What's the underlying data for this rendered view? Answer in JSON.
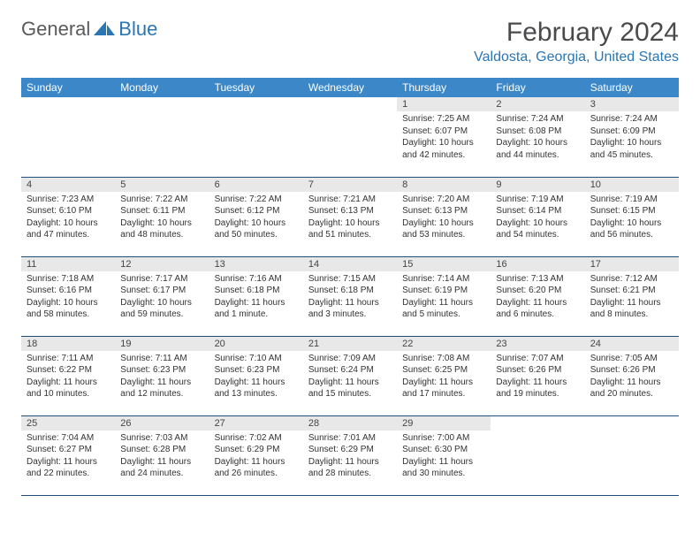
{
  "logo": {
    "word1": "General",
    "word2": "Blue"
  },
  "header": {
    "title": "February 2024",
    "location": "Valdosta, Georgia, United States"
  },
  "colors": {
    "header_bg": "#3b87c8",
    "header_text": "#ffffff",
    "daynum_bg": "#e8e8e8",
    "row_border": "#1f4e79",
    "logo_grey": "#5a5a5c",
    "logo_blue": "#2a76b4",
    "title_color": "#4a4a4c"
  },
  "day_headers": [
    "Sunday",
    "Monday",
    "Tuesday",
    "Wednesday",
    "Thursday",
    "Friday",
    "Saturday"
  ],
  "weeks": [
    [
      null,
      null,
      null,
      null,
      {
        "n": "1",
        "sunrise": "Sunrise: 7:25 AM",
        "sunset": "Sunset: 6:07 PM",
        "day1": "Daylight: 10 hours",
        "day2": "and 42 minutes."
      },
      {
        "n": "2",
        "sunrise": "Sunrise: 7:24 AM",
        "sunset": "Sunset: 6:08 PM",
        "day1": "Daylight: 10 hours",
        "day2": "and 44 minutes."
      },
      {
        "n": "3",
        "sunrise": "Sunrise: 7:24 AM",
        "sunset": "Sunset: 6:09 PM",
        "day1": "Daylight: 10 hours",
        "day2": "and 45 minutes."
      }
    ],
    [
      {
        "n": "4",
        "sunrise": "Sunrise: 7:23 AM",
        "sunset": "Sunset: 6:10 PM",
        "day1": "Daylight: 10 hours",
        "day2": "and 47 minutes."
      },
      {
        "n": "5",
        "sunrise": "Sunrise: 7:22 AM",
        "sunset": "Sunset: 6:11 PM",
        "day1": "Daylight: 10 hours",
        "day2": "and 48 minutes."
      },
      {
        "n": "6",
        "sunrise": "Sunrise: 7:22 AM",
        "sunset": "Sunset: 6:12 PM",
        "day1": "Daylight: 10 hours",
        "day2": "and 50 minutes."
      },
      {
        "n": "7",
        "sunrise": "Sunrise: 7:21 AM",
        "sunset": "Sunset: 6:13 PM",
        "day1": "Daylight: 10 hours",
        "day2": "and 51 minutes."
      },
      {
        "n": "8",
        "sunrise": "Sunrise: 7:20 AM",
        "sunset": "Sunset: 6:13 PM",
        "day1": "Daylight: 10 hours",
        "day2": "and 53 minutes."
      },
      {
        "n": "9",
        "sunrise": "Sunrise: 7:19 AM",
        "sunset": "Sunset: 6:14 PM",
        "day1": "Daylight: 10 hours",
        "day2": "and 54 minutes."
      },
      {
        "n": "10",
        "sunrise": "Sunrise: 7:19 AM",
        "sunset": "Sunset: 6:15 PM",
        "day1": "Daylight: 10 hours",
        "day2": "and 56 minutes."
      }
    ],
    [
      {
        "n": "11",
        "sunrise": "Sunrise: 7:18 AM",
        "sunset": "Sunset: 6:16 PM",
        "day1": "Daylight: 10 hours",
        "day2": "and 58 minutes."
      },
      {
        "n": "12",
        "sunrise": "Sunrise: 7:17 AM",
        "sunset": "Sunset: 6:17 PM",
        "day1": "Daylight: 10 hours",
        "day2": "and 59 minutes."
      },
      {
        "n": "13",
        "sunrise": "Sunrise: 7:16 AM",
        "sunset": "Sunset: 6:18 PM",
        "day1": "Daylight: 11 hours",
        "day2": "and 1 minute."
      },
      {
        "n": "14",
        "sunrise": "Sunrise: 7:15 AM",
        "sunset": "Sunset: 6:18 PM",
        "day1": "Daylight: 11 hours",
        "day2": "and 3 minutes."
      },
      {
        "n": "15",
        "sunrise": "Sunrise: 7:14 AM",
        "sunset": "Sunset: 6:19 PM",
        "day1": "Daylight: 11 hours",
        "day2": "and 5 minutes."
      },
      {
        "n": "16",
        "sunrise": "Sunrise: 7:13 AM",
        "sunset": "Sunset: 6:20 PM",
        "day1": "Daylight: 11 hours",
        "day2": "and 6 minutes."
      },
      {
        "n": "17",
        "sunrise": "Sunrise: 7:12 AM",
        "sunset": "Sunset: 6:21 PM",
        "day1": "Daylight: 11 hours",
        "day2": "and 8 minutes."
      }
    ],
    [
      {
        "n": "18",
        "sunrise": "Sunrise: 7:11 AM",
        "sunset": "Sunset: 6:22 PM",
        "day1": "Daylight: 11 hours",
        "day2": "and 10 minutes."
      },
      {
        "n": "19",
        "sunrise": "Sunrise: 7:11 AM",
        "sunset": "Sunset: 6:23 PM",
        "day1": "Daylight: 11 hours",
        "day2": "and 12 minutes."
      },
      {
        "n": "20",
        "sunrise": "Sunrise: 7:10 AM",
        "sunset": "Sunset: 6:23 PM",
        "day1": "Daylight: 11 hours",
        "day2": "and 13 minutes."
      },
      {
        "n": "21",
        "sunrise": "Sunrise: 7:09 AM",
        "sunset": "Sunset: 6:24 PM",
        "day1": "Daylight: 11 hours",
        "day2": "and 15 minutes."
      },
      {
        "n": "22",
        "sunrise": "Sunrise: 7:08 AM",
        "sunset": "Sunset: 6:25 PM",
        "day1": "Daylight: 11 hours",
        "day2": "and 17 minutes."
      },
      {
        "n": "23",
        "sunrise": "Sunrise: 7:07 AM",
        "sunset": "Sunset: 6:26 PM",
        "day1": "Daylight: 11 hours",
        "day2": "and 19 minutes."
      },
      {
        "n": "24",
        "sunrise": "Sunrise: 7:05 AM",
        "sunset": "Sunset: 6:26 PM",
        "day1": "Daylight: 11 hours",
        "day2": "and 20 minutes."
      }
    ],
    [
      {
        "n": "25",
        "sunrise": "Sunrise: 7:04 AM",
        "sunset": "Sunset: 6:27 PM",
        "day1": "Daylight: 11 hours",
        "day2": "and 22 minutes."
      },
      {
        "n": "26",
        "sunrise": "Sunrise: 7:03 AM",
        "sunset": "Sunset: 6:28 PM",
        "day1": "Daylight: 11 hours",
        "day2": "and 24 minutes."
      },
      {
        "n": "27",
        "sunrise": "Sunrise: 7:02 AM",
        "sunset": "Sunset: 6:29 PM",
        "day1": "Daylight: 11 hours",
        "day2": "and 26 minutes."
      },
      {
        "n": "28",
        "sunrise": "Sunrise: 7:01 AM",
        "sunset": "Sunset: 6:29 PM",
        "day1": "Daylight: 11 hours",
        "day2": "and 28 minutes."
      },
      {
        "n": "29",
        "sunrise": "Sunrise: 7:00 AM",
        "sunset": "Sunset: 6:30 PM",
        "day1": "Daylight: 11 hours",
        "day2": "and 30 minutes."
      },
      null,
      null
    ]
  ]
}
